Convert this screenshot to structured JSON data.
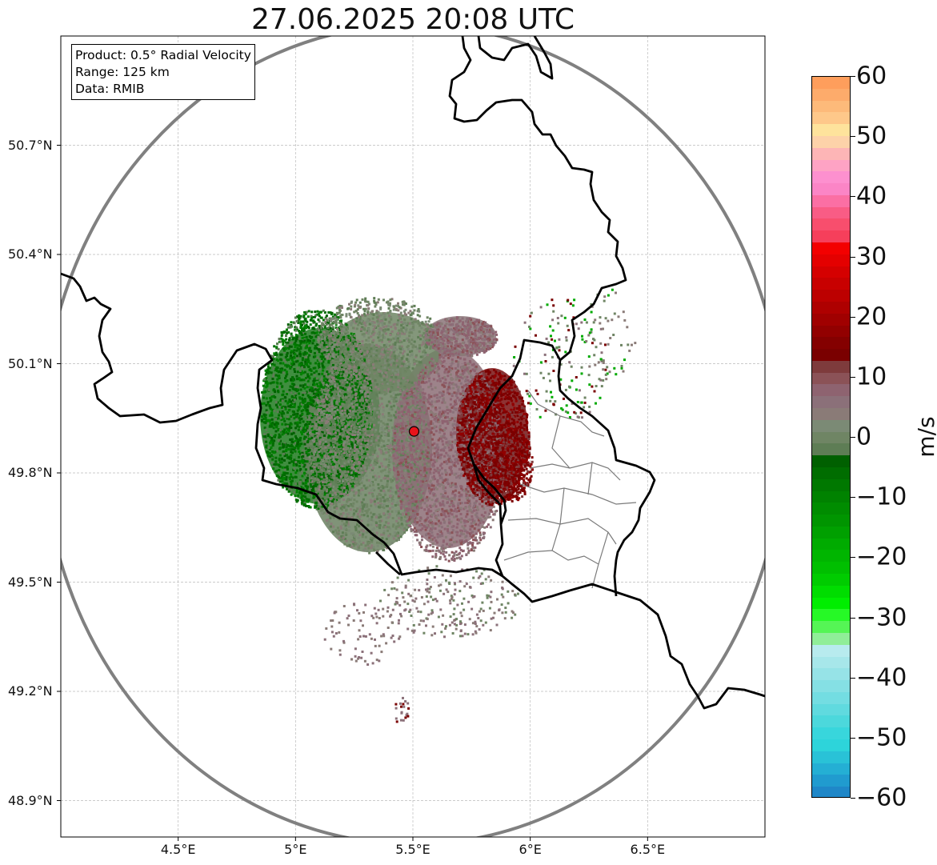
{
  "title": "27.06.2025 20:08 UTC",
  "info_box": {
    "product": "Product: 0.5° Radial Velocity",
    "range": "Range: 125 km",
    "source": "Data: RMIB"
  },
  "map": {
    "lon_range": [
      4.0,
      7.0
    ],
    "lat_range": [
      48.8,
      51.0
    ],
    "lon_ticks": [
      {
        "value": 4.5,
        "label": "4.5°E"
      },
      {
        "value": 5.0,
        "label": "5°E"
      },
      {
        "value": 5.5,
        "label": "5.5°E"
      },
      {
        "value": 6.0,
        "label": "6°E"
      },
      {
        "value": 6.5,
        "label": "6.5°E"
      }
    ],
    "lat_ticks": [
      {
        "value": 50.7,
        "label": "50.7°N"
      },
      {
        "value": 50.4,
        "label": "50.4°N"
      },
      {
        "value": 50.1,
        "label": "50.1°N"
      },
      {
        "value": 49.8,
        "label": "49.8°N"
      },
      {
        "value": 49.5,
        "label": "49.5°N"
      },
      {
        "value": 49.2,
        "label": "49.2°N"
      },
      {
        "value": 48.9,
        "label": "48.9°N"
      }
    ],
    "radar_site": {
      "lon": 5.505,
      "lat": 49.914,
      "color": "#e8141b"
    },
    "range_ring_color": "#808080",
    "border_color": "#000000",
    "gridlines": true
  },
  "colorbar": {
    "unit": "m/s",
    "min": -60,
    "max": 60,
    "ticks": [
      60,
      50,
      40,
      30,
      20,
      10,
      0,
      -10,
      -20,
      -30,
      -40,
      -50,
      -60
    ],
    "tick_labels": [
      "60",
      "50",
      "40",
      "30",
      "20",
      "10",
      "0",
      "−10",
      "−20",
      "−30",
      "−40",
      "−50",
      "−60"
    ],
    "colors_top_to_bottom": [
      "#fe9e5c",
      "#fdab6b",
      "#fdba7a",
      "#fec88a",
      "#fee39c",
      "#fdd2a9",
      "#fdb5b6",
      "#fea3c4",
      "#fd90cf",
      "#fb85c6",
      "#fb6fa4",
      "#f95c85",
      "#f84e6d",
      "#f63f5b",
      "#f30000",
      "#e40000",
      "#d50000",
      "#c80000",
      "#bc0000",
      "#ae0000",
      "#a00000",
      "#920000",
      "#840000",
      "#7a0000",
      "#7e3b3c",
      "#8b5257",
      "#8e6370",
      "#8b7079",
      "#8a7b77",
      "#7b8a75",
      "#6f8564",
      "#5e7d55",
      "#006000",
      "#006d00",
      "#007800",
      "#008200",
      "#008c00",
      "#009500",
      "#00a000",
      "#00ab00",
      "#00b500",
      "#00bf00",
      "#00cc00",
      "#00dd00",
      "#00ee00",
      "#26f926",
      "#55f555",
      "#90ee98",
      "#b8ebee",
      "#a7e7ea",
      "#96e3e7",
      "#85e0e4",
      "#73dde2",
      "#60dadf",
      "#4cd8dc",
      "#38d6dc",
      "#2dd4da",
      "#29c2d7",
      "#24afd4",
      "#209bcf",
      "#1f87c8"
    ]
  }
}
